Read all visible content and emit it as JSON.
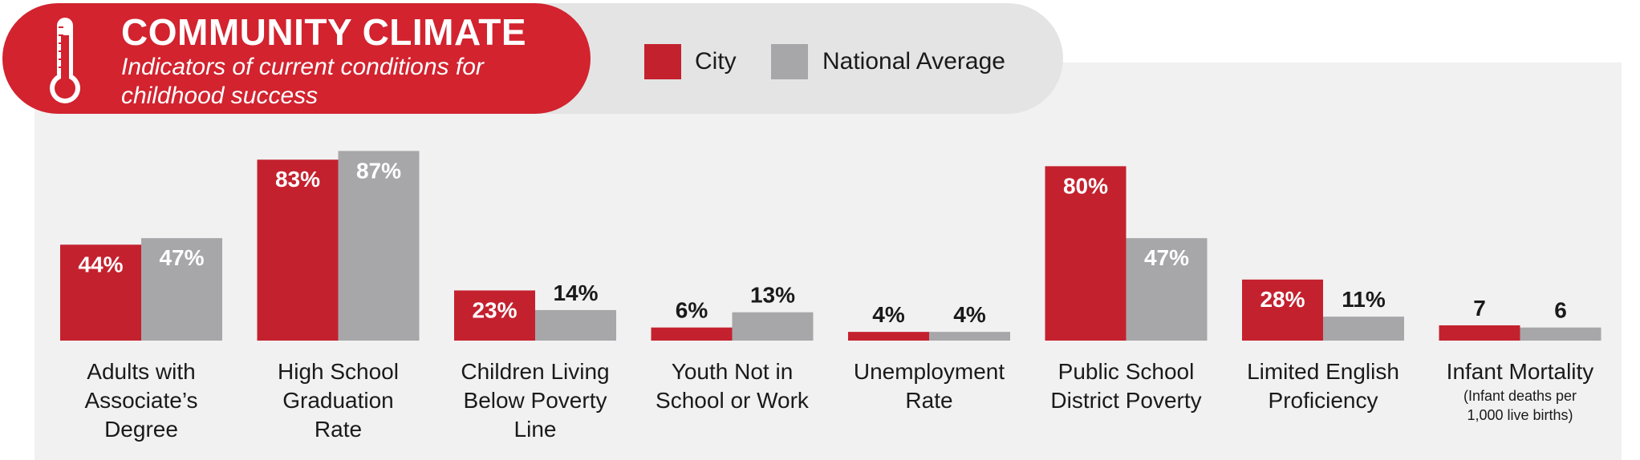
{
  "header": {
    "title": "COMMUNITY CLIMATE",
    "subtitle": "Indicators of current conditions for childhood success"
  },
  "icons": {
    "thermometer": "thermometer-icon"
  },
  "colors": {
    "city": "#c4212e",
    "national": "#a7a7aa",
    "label_dark": "#1a1a1a",
    "label_light": "#ffffff"
  },
  "chart_data": {
    "type": "bar",
    "legend": [
      "City",
      "National Average"
    ],
    "legend_position": "top",
    "categories": [
      {
        "label": "Adults with Associate's Degree",
        "lines": [
          "Adults with",
          "Associate’s",
          "Degree"
        ],
        "note": ""
      },
      {
        "label": "High School Graduation Rate",
        "lines": [
          "High School",
          "Graduation",
          "Rate"
        ],
        "note": ""
      },
      {
        "label": "Children Living Below Poverty Line",
        "lines": [
          "Children Living",
          "Below Poverty",
          "Line"
        ],
        "note": ""
      },
      {
        "label": "Youth Not in School or Work",
        "lines": [
          "Youth Not in",
          "School or Work"
        ],
        "note": ""
      },
      {
        "label": "Unemployment Rate",
        "lines": [
          "Unemployment",
          "Rate"
        ],
        "note": ""
      },
      {
        "label": "Public School District Poverty",
        "lines": [
          "Public School",
          "District Poverty"
        ],
        "note": ""
      },
      {
        "label": "Limited English Proficiency",
        "lines": [
          "Limited English",
          "Proficiency"
        ],
        "note": ""
      },
      {
        "label": "Infant Mortality",
        "lines": [
          "Infant Mortality"
        ],
        "note_lines": [
          "(Infant deaths per",
          "1,000 live births)"
        ]
      }
    ],
    "series": [
      {
        "name": "City",
        "values": [
          44,
          83,
          23,
          6,
          4,
          80,
          28,
          7
        ],
        "labels": [
          "44%",
          "83%",
          "23%",
          "6%",
          "4%",
          "80%",
          "28%",
          "7"
        ]
      },
      {
        "name": "National Average",
        "values": [
          47,
          87,
          14,
          13,
          4,
          47,
          11,
          6
        ],
        "labels": [
          "47%",
          "87%",
          "14%",
          "13%",
          "4%",
          "47%",
          "11%",
          "6"
        ]
      }
    ],
    "ylim": [
      0,
      100
    ],
    "title": "COMMUNITY CLIMATE",
    "xlabel": "",
    "ylabel": ""
  }
}
